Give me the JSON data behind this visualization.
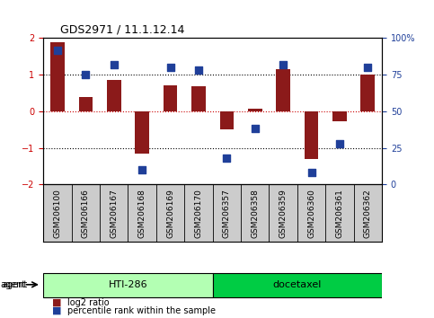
{
  "title": "GDS2971 / 11.1.12.14",
  "samples": [
    "GSM206100",
    "GSM206166",
    "GSM206167",
    "GSM206168",
    "GSM206169",
    "GSM206170",
    "GSM206357",
    "GSM206358",
    "GSM206359",
    "GSM206360",
    "GSM206361",
    "GSM206362"
  ],
  "log2_ratio": [
    1.9,
    0.4,
    0.85,
    -1.15,
    0.7,
    0.68,
    -0.5,
    0.08,
    1.15,
    -1.3,
    -0.28,
    1.0
  ],
  "percentile_rank": [
    92,
    75,
    82,
    10,
    80,
    78,
    18,
    38,
    82,
    8,
    28,
    80
  ],
  "bar_color": "#8B1A1A",
  "dot_color": "#1F3F99",
  "ylim": [
    -2,
    2
  ],
  "yticks_left": [
    -2,
    -1,
    0,
    1,
    2
  ],
  "yticks_right": [
    0,
    25,
    50,
    75,
    100
  ],
  "hline_positions": [
    -1,
    0,
    1
  ],
  "hline_colors": [
    "black",
    "#cc0000",
    "black"
  ],
  "hline_styles": [
    "dotted",
    "dotted",
    "dotted"
  ],
  "group1_label": "HTI-286",
  "group2_label": "docetaxel",
  "group1_indices": [
    0,
    1,
    2,
    3,
    4,
    5
  ],
  "group2_indices": [
    6,
    7,
    8,
    9,
    10,
    11
  ],
  "agent_label": "agent",
  "legend_bar_label": "log2 ratio",
  "legend_dot_label": "percentile rank within the sample",
  "group1_color": "#b3ffb3",
  "group2_color": "#00cc44",
  "bg_color": "#ffffff",
  "plot_bg_color": "#ffffff",
  "tick_label_area_color": "#cccccc",
  "bar_width": 0.5
}
